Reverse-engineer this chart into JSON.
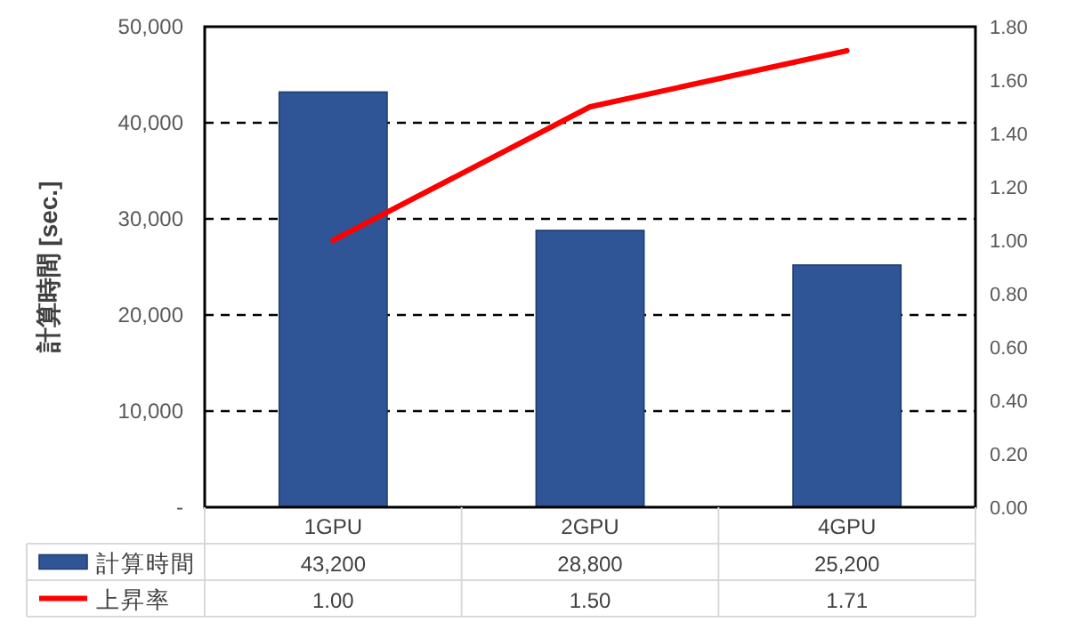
{
  "chart_data": {
    "type": "bar",
    "categories": [
      "1GPU",
      "2GPU",
      "4GPU"
    ],
    "series": [
      {
        "name": "計算時間",
        "color": "#2f5597",
        "values": [
          43200,
          28800,
          25200
        ],
        "value_labels": [
          "43,200",
          "28,800",
          "25,200"
        ]
      },
      {
        "name": "上昇率",
        "type": "line",
        "axis": "y2",
        "color": "#ff0000",
        "values": [
          1.0,
          1.5,
          1.71
        ],
        "value_labels": [
          "1.00",
          "1.50",
          "1.71"
        ]
      }
    ],
    "ylabel": "計算時間 [sec.]",
    "ylim": [
      0,
      50000
    ],
    "yticks": [
      {
        "value": 0,
        "label": "-"
      },
      {
        "value": 10000,
        "label": "10,000"
      },
      {
        "value": 20000,
        "label": "20,000"
      },
      {
        "value": 30000,
        "label": "30,000"
      },
      {
        "value": 40000,
        "label": "40,000"
      },
      {
        "value": 50000,
        "label": "50,000"
      }
    ],
    "y2lim": [
      0,
      1.8
    ],
    "y2ticks": [
      {
        "value": 0,
        "label": "0.00"
      },
      {
        "value": 0.2,
        "label": "0.20"
      },
      {
        "value": 0.4,
        "label": "0.40"
      },
      {
        "value": 0.6,
        "label": "0.60"
      },
      {
        "value": 0.8,
        "label": "0.80"
      },
      {
        "value": 1.0,
        "label": "1.00"
      },
      {
        "value": 1.2,
        "label": "1.20"
      },
      {
        "value": 1.4,
        "label": "1.40"
      },
      {
        "value": 1.6,
        "label": "1.60"
      },
      {
        "value": 1.8,
        "label": "1.80"
      }
    ],
    "grid": "y",
    "legend": "bottom",
    "marker": "none",
    "line_style": "solid"
  }
}
